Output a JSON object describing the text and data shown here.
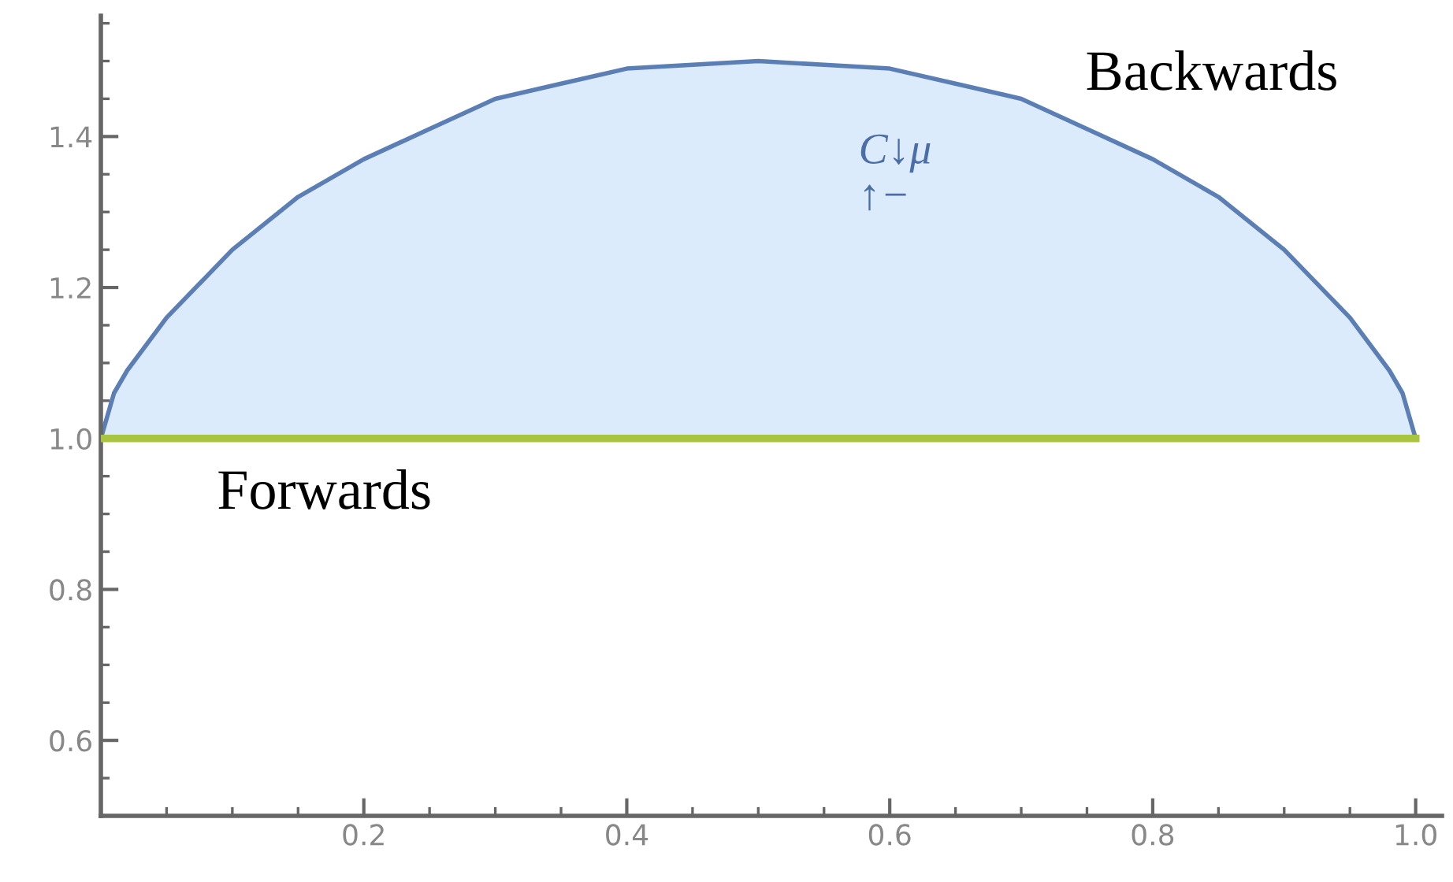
{
  "chart_data": {
    "type": "line",
    "x": [
      0,
      0.01,
      0.02,
      0.05,
      0.1,
      0.15,
      0.2,
      0.25,
      0.3,
      0.35,
      0.4,
      0.45,
      0.5,
      0.55,
      0.6,
      0.65,
      0.7,
      0.75,
      0.8,
      0.85,
      0.9,
      0.95,
      0.98,
      0.99,
      1.0
    ],
    "series": [
      {
        "name": "Forwards",
        "color": "#a8c440",
        "values": [
          1,
          1,
          1,
          1,
          1,
          1,
          1,
          1,
          1,
          1,
          1,
          1,
          1,
          1,
          1,
          1,
          1,
          1,
          1,
          1,
          1,
          1,
          1,
          1,
          1
        ]
      },
      {
        "name": "Backwards",
        "type": "area",
        "color": "#5b7fb5",
        "values": [
          1.0,
          1.06,
          1.09,
          1.16,
          1.25,
          1.32,
          1.37,
          1.41,
          1.45,
          1.47,
          1.49,
          1.495,
          1.5,
          1.495,
          1.49,
          1.47,
          1.45,
          1.41,
          1.37,
          1.32,
          1.25,
          1.16,
          1.09,
          1.06,
          1.0
        ]
      }
    ],
    "xlim": [
      0,
      1.02
    ],
    "ylim": [
      0.5,
      1.56
    ],
    "xticks": [
      {
        "value": 0.2,
        "label": "0.2"
      },
      {
        "value": 0.4,
        "label": "0.4"
      },
      {
        "value": 0.6,
        "label": "0.6"
      },
      {
        "value": 0.8,
        "label": "0.8"
      },
      {
        "value": 1.0,
        "label": "1.0"
      }
    ],
    "yticks": [
      {
        "value": 0.6,
        "label": "0.6"
      },
      {
        "value": 0.8,
        "label": "0.8"
      },
      {
        "value": 1.0,
        "label": "1.0"
      },
      {
        "value": 1.2,
        "label": "1.2"
      },
      {
        "value": 1.4,
        "label": "1.4"
      }
    ],
    "annotations": [
      "C↓μ\n↑−"
    ],
    "grid": false,
    "legend": false
  }
}
